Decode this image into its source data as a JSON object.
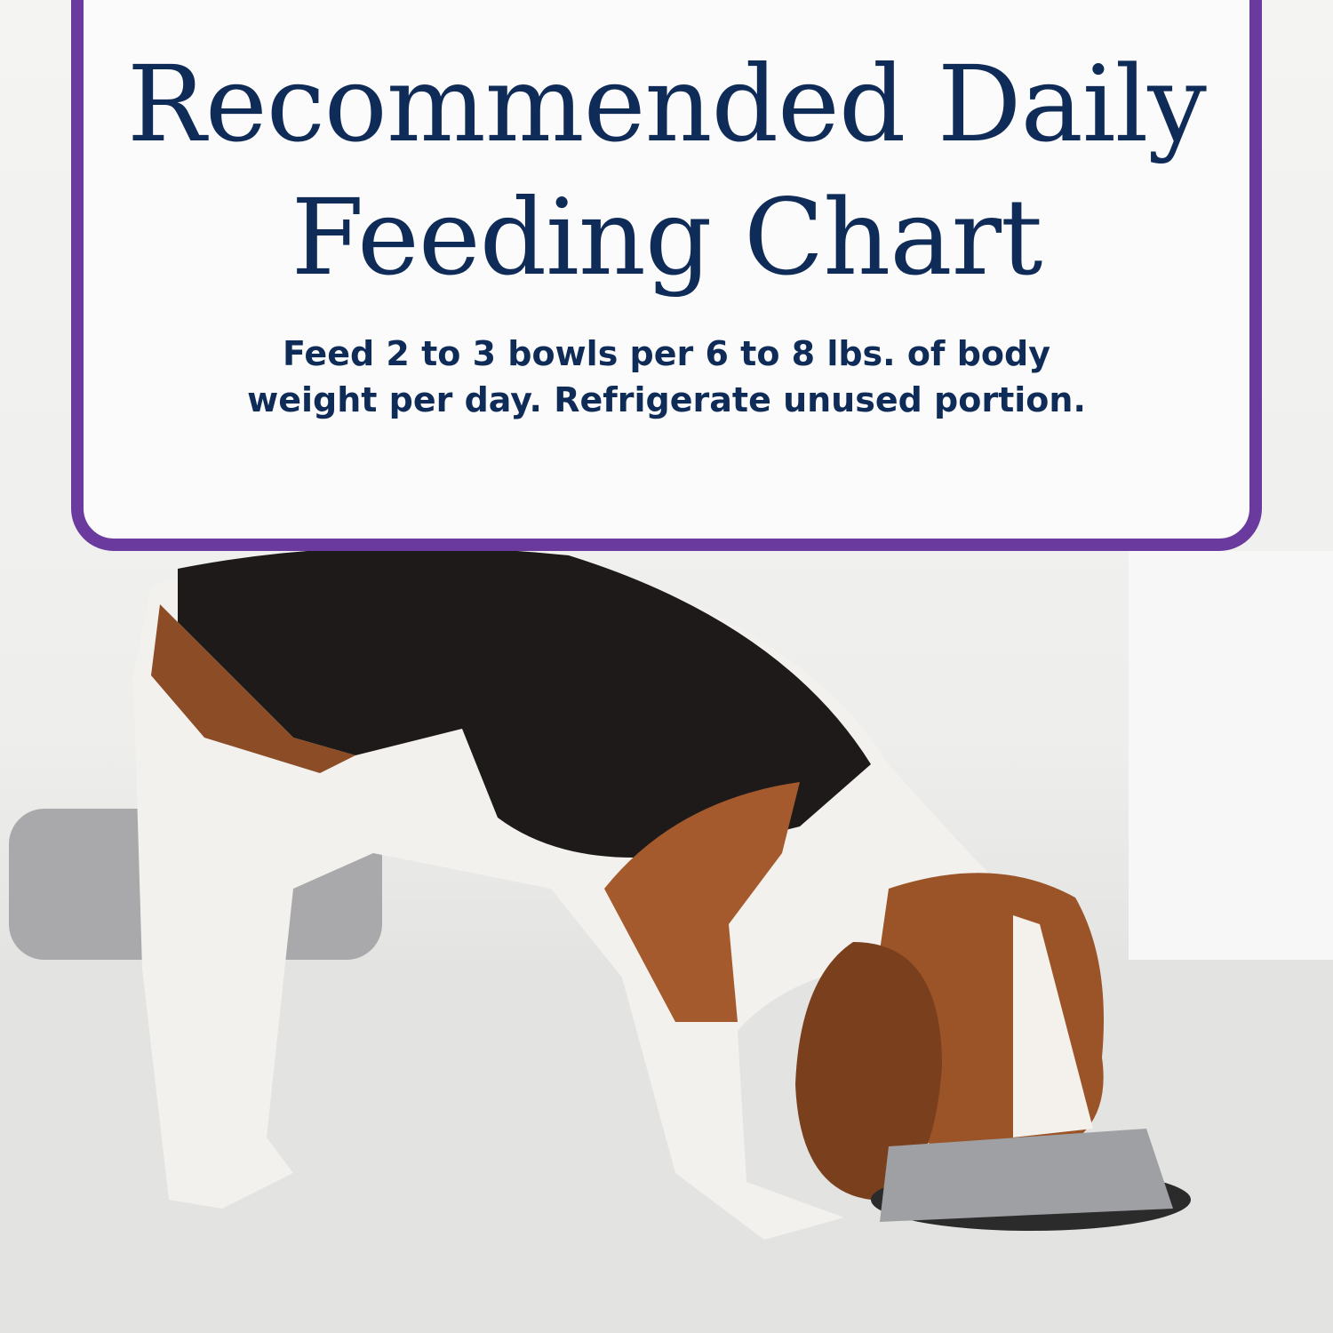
{
  "title_line1": "Recommended Daily",
  "title_line2": "Feeding Chart",
  "subtitle_line1": "Feed 2 to 3 bowls per 6 to 8 lbs. of body",
  "subtitle_line2": "weight per day. Refrigerate unused portion.",
  "colors": {
    "border": "#6b3a9e",
    "text": "#0f2b57",
    "card": "#fbfbfb"
  },
  "image": {
    "subject": "beagle-eating-from-bowl"
  }
}
